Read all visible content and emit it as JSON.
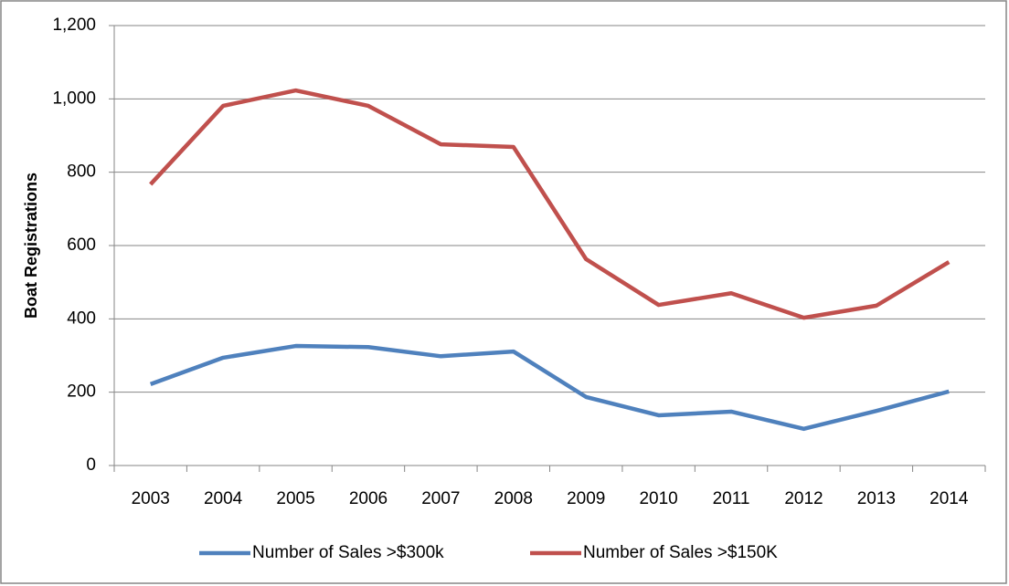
{
  "chart_data": {
    "type": "line",
    "y_label": "Boat Registrations",
    "categories": [
      "2003",
      "2004",
      "2005",
      "2006",
      "2007",
      "2008",
      "2009",
      "2010",
      "2011",
      "2012",
      "2013",
      "2014"
    ],
    "series": [
      {
        "name": "Number of Sales >$300k",
        "color": "#4f81bd",
        "values": [
          222,
          294,
          326,
          323,
          298,
          311,
          187,
          137,
          147,
          100,
          149,
          202
        ]
      },
      {
        "name": "Number of Sales >$150K",
        "color": "#c0504d",
        "values": [
          767,
          981,
          1023,
          981,
          876,
          869,
          563,
          438,
          470,
          403,
          436,
          555
        ]
      }
    ],
    "ylim": [
      0,
      1200
    ],
    "yticks": [
      0,
      200,
      400,
      600,
      800,
      {
        "value": 1000,
        "label": "1,000"
      },
      {
        "value": 1200,
        "label": "1,200"
      }
    ],
    "grid": true,
    "legend": "bottom"
  }
}
